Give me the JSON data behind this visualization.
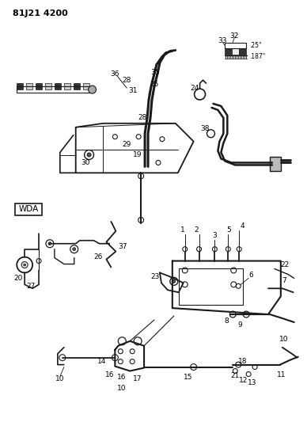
{
  "title": "81J21 4200",
  "bg_color": "#ffffff",
  "line_color": "#1a1a1a",
  "fig_width": 3.88,
  "fig_height": 5.33,
  "dpi": 100,
  "scale_25": ".25\"",
  "scale_187": ".187\"",
  "wda": "WDA"
}
